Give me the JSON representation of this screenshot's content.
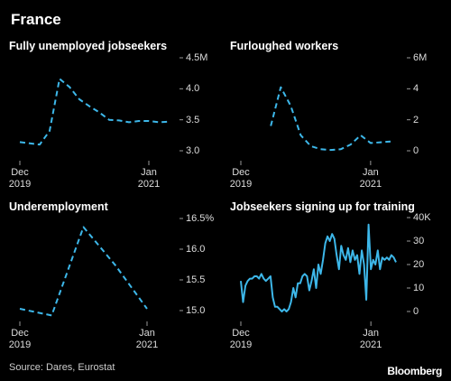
{
  "title": "France",
  "source": "Source: Dares, Eurostat",
  "brand": "Bloomberg",
  "chart_data": [
    {
      "type": "line",
      "title": "Fully unemployed jobseekers",
      "color": "#3db7e9",
      "dashed": true,
      "categories": [
        "Dec 2019",
        null,
        null,
        null,
        null,
        null,
        null,
        null,
        null,
        null,
        null,
        null,
        null,
        "Jan 2021",
        null,
        null
      ],
      "values": [
        3.14,
        3.12,
        3.1,
        3.32,
        4.16,
        4.03,
        3.83,
        3.72,
        3.62,
        3.5,
        3.49,
        3.46,
        3.48,
        3.48,
        3.46,
        3.47
      ],
      "ylim": [
        3.0,
        4.5
      ],
      "yticks": [
        {
          "value": 3.0,
          "label": "3.0"
        },
        3.5,
        {
          "value": 4.0,
          "label": "4.0"
        },
        {
          "value": 4.5,
          "label": "4.5M"
        }
      ]
    },
    {
      "type": "line",
      "title": "Furloughed workers",
      "color": "#3db7e9",
      "dashed": true,
      "categories": [
        "Dec 2019",
        null,
        null,
        null,
        null,
        null,
        null,
        null,
        null,
        null,
        null,
        null,
        null,
        "Jan 2021",
        null,
        null
      ],
      "values": [
        null,
        null,
        null,
        1.6,
        4.1,
        2.9,
        1.0,
        0.3,
        0.1,
        0.05,
        0.1,
        0.4,
        1.0,
        0.5,
        0.55,
        0.6
      ],
      "ylim": [
        0,
        6
      ],
      "yticks": [
        0,
        2,
        4,
        {
          "value": 6,
          "label": "6M"
        }
      ]
    },
    {
      "type": "line",
      "title": "Underemployment",
      "color": "#3db7e9",
      "dashed": true,
      "categories": [
        "Dec 2019",
        null,
        null,
        null,
        "Jan 2021"
      ],
      "values": [
        15.03,
        14.92,
        16.36,
        15.74,
        15.03
      ],
      "ylim": [
        15.0,
        16.5
      ],
      "yticks": [
        {
          "value": 15.0,
          "label": "15.0"
        },
        15.5,
        {
          "value": 16.0,
          "label": "16.0"
        },
        {
          "value": 16.5,
          "label": "16.5%"
        }
      ]
    },
    {
      "type": "line",
      "title": "Jobseekers signing up for training",
      "color": "#3db7e9",
      "dashed": false,
      "categories": [
        "Dec 2019",
        null,
        null,
        null,
        null,
        null,
        null,
        null,
        null,
        null,
        null,
        null,
        null,
        null,
        null,
        null,
        null,
        null,
        null,
        null,
        null,
        null,
        null,
        null,
        null,
        null,
        null,
        null,
        null,
        null,
        null,
        null,
        null,
        null,
        null,
        null,
        null,
        null,
        null,
        null,
        null,
        null,
        null,
        null,
        null,
        null,
        null,
        null,
        null,
        null,
        null,
        null,
        null,
        null,
        null,
        null,
        null,
        "Jan 2021",
        null,
        null,
        null,
        null,
        null,
        null,
        null,
        null,
        null,
        null,
        null
      ],
      "values": [
        13,
        4,
        11,
        13,
        14,
        14,
        15,
        15,
        14,
        16,
        14,
        13,
        14,
        15,
        6,
        2,
        2,
        1,
        0,
        1,
        0,
        1,
        4,
        10,
        6,
        12,
        12,
        15,
        16,
        15,
        9,
        13,
        18,
        10,
        20,
        16,
        22,
        29,
        32,
        30,
        33,
        31,
        24,
        18,
        28,
        24,
        22,
        27,
        21,
        26,
        22,
        24,
        16,
        26,
        20,
        5,
        37,
        18,
        22,
        20,
        26,
        18,
        23,
        22,
        23,
        22,
        24,
        23,
        21
      ],
      "ylim": [
        0,
        40
      ],
      "yticks": [
        0,
        10,
        20,
        30,
        {
          "value": 40,
          "label": "40K"
        }
      ]
    }
  ]
}
